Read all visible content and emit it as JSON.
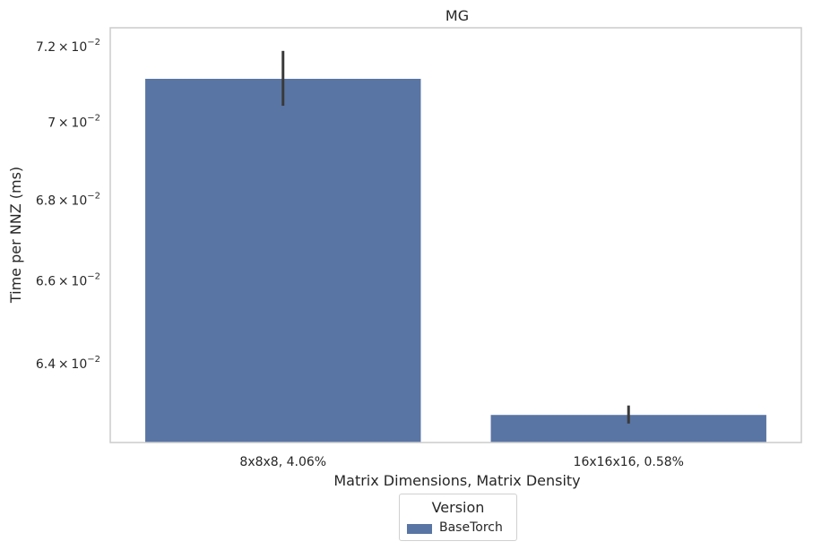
{
  "chart_data": {
    "type": "bar",
    "title": "MG",
    "xlabel": "Matrix Dimensions, Matrix Density",
    "ylabel": "Time per NNZ (ms)",
    "yscale": "log",
    "ylim": [
      0.06215,
      0.0725
    ],
    "yticks": [
      {
        "value": 0.064,
        "mantissa": "6.4",
        "exponent": "−2"
      },
      {
        "value": 0.066,
        "mantissa": "6.6",
        "exponent": "−2"
      },
      {
        "value": 0.068,
        "mantissa": "6.8",
        "exponent": "−2"
      },
      {
        "value": 0.07,
        "mantissa": "7",
        "exponent": "−2"
      },
      {
        "value": 0.072,
        "mantissa": "7.2",
        "exponent": "−2"
      }
    ],
    "categories": [
      "8x8x8, 4.06%",
      "16x16x16, 0.58%"
    ],
    "series": [
      {
        "name": "BaseTorch",
        "color": "#5975a4",
        "values": [
          0.07115,
          0.0628
        ],
        "error_low": [
          0.07043,
          0.06259
        ],
        "error_high": [
          0.07188,
          0.06301
        ]
      }
    ],
    "grid": false,
    "legend": {
      "title": "Version",
      "position": "bottom-center"
    }
  }
}
